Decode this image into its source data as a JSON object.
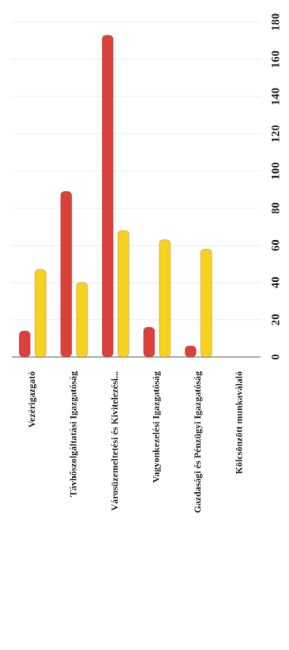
{
  "chart_data": {
    "type": "bar",
    "categories": [
      "Vezérigazgató",
      "Távhőszolgáltatási Igazgatóság",
      "Városüzemeltetési és Kivitelezési...",
      "Vagyonkezelési Igazgatóság",
      "Gazdasági és Pénzügyi Igazgatóság",
      "Kölcsönzött munkaválaló"
    ],
    "series": [
      {
        "color": "#d9413a",
        "values": [
          14,
          89,
          173,
          16,
          6,
          0
        ]
      },
      {
        "color": "#f5d21e",
        "values": [
          47,
          40,
          68,
          63,
          58,
          0
        ]
      }
    ],
    "ylim": [
      0,
      180
    ],
    "yticks": [
      0,
      20,
      40,
      60,
      80,
      100,
      120,
      140,
      160,
      180
    ],
    "grid": true
  }
}
